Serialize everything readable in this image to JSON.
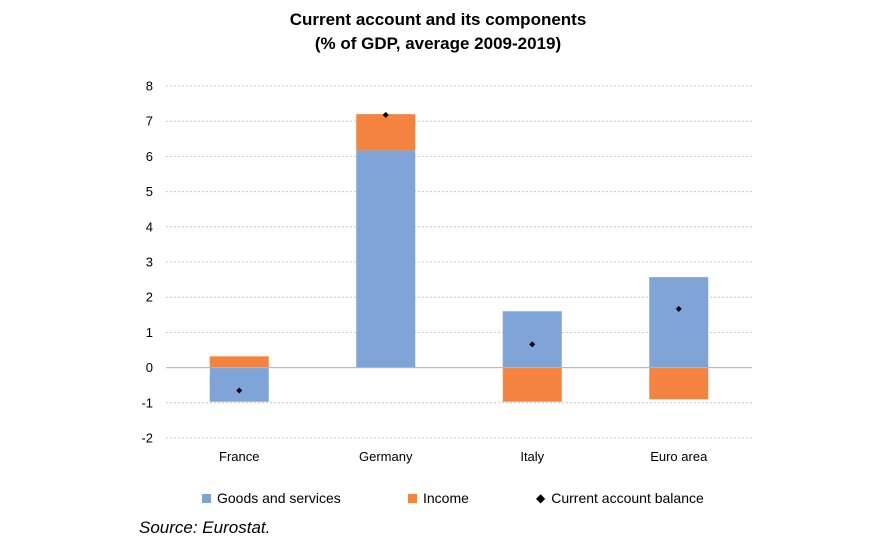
{
  "chart_data": {
    "type": "bar",
    "stacked": true,
    "title": "Current account and its components",
    "subtitle": "(% of GDP, average 2009-2019)",
    "categories": [
      "France",
      "Germany",
      "Italy",
      "Euro area"
    ],
    "series": [
      {
        "name": "Goods and services",
        "kind": "bar",
        "color": "#7fa5d8",
        "values": [
          -0.97,
          6.17,
          1.6,
          2.57
        ]
      },
      {
        "name": "Income",
        "kind": "bar",
        "color": "#f58340",
        "values": [
          0.32,
          1.03,
          -0.97,
          -0.9
        ]
      },
      {
        "name": "Current account balance",
        "kind": "marker",
        "color": "#000000",
        "values": [
          -0.65,
          7.18,
          0.66,
          1.67
        ]
      }
    ],
    "ylim": [
      -2,
      8
    ],
    "yticks": [
      8,
      7,
      6,
      5,
      4,
      3,
      2,
      1,
      0,
      -1,
      -2
    ],
    "grid": true,
    "legend_position": "bottom"
  },
  "source": "Source: Eurostat."
}
